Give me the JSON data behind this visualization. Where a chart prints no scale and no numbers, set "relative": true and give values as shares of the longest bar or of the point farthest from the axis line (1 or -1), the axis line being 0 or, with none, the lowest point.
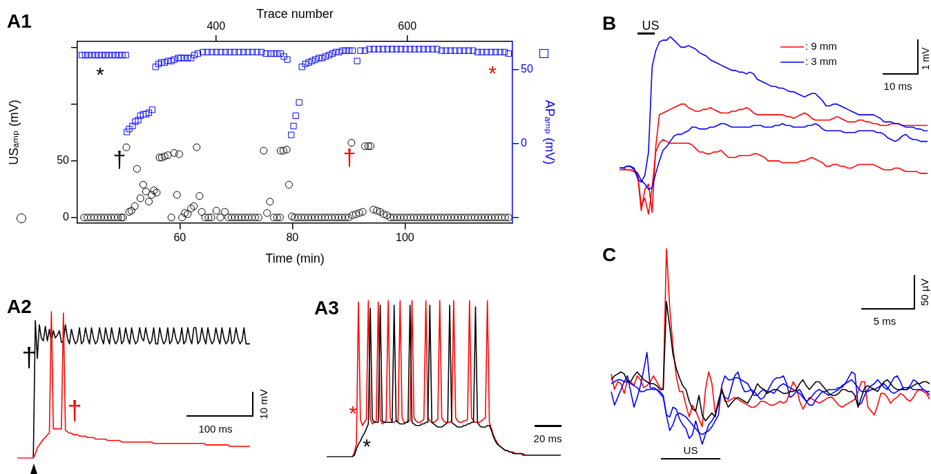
{
  "chart_data": [
    {
      "type": "scatter",
      "title": "A1",
      "xlabel": "Time (min)",
      "ylabel": "USₐₘₚ (mV)",
      "y2label": "APₐₘₚ (mV)",
      "x2label": "Trace number",
      "xlim": [
        41.8,
        119.1
      ],
      "xticks": [
        60,
        80,
        100
      ],
      "x2lim": [
        255,
        710
      ],
      "x2ticks": [
        400,
        600
      ],
      "ylim": [
        -5,
        155.5
      ],
      "yticks": [
        0,
        50,
        {
          "value": 100,
          "label": null
        },
        {
          "value": 150,
          "label": null
        }
      ],
      "y2lim": [
        -53.7,
        69.2
      ],
      "y2ticks": [
        {
          "value": -50,
          "label": null
        },
        0,
        50
      ],
      "series": [
        {
          "color": "#000000",
          "marker": "circle",
          "x": [
            43.0,
            43.6,
            44.2,
            44.8,
            45.4,
            46.0,
            46.6,
            47.2,
            47.8,
            48.4,
            49.0,
            49.6,
            49.9,
            50.5,
            51.0,
            51.4,
            52.0,
            52.4,
            53.0,
            53.5,
            54.0,
            54.5,
            55.0,
            55.4,
            55.9,
            56.4,
            56.8,
            57.3,
            57.9,
            58.5,
            59.0,
            59.5,
            59.9,
            60.4,
            60.9,
            61.4,
            62.0,
            62.5,
            63.0,
            63.5,
            63.9,
            64.5,
            65.1,
            65.6,
            66.5,
            67.2,
            68.0,
            68.6,
            69.2,
            69.8,
            70.4,
            71.0,
            71.6,
            72.2,
            72.8,
            73.4,
            74.0,
            74.9,
            75.5,
            76.0,
            76.7,
            77.3,
            77.8,
            77.9,
            78.4,
            79.0,
            79.4,
            79.9,
            80.4,
            81.0,
            81.6,
            82.2,
            82.8,
            83.4,
            84.0,
            84.6,
            85.2,
            85.8,
            86.4,
            87.0,
            87.6,
            88.2,
            88.8,
            89.4,
            90.0,
            90.5,
            90.7,
            91.3,
            91.9,
            92.5,
            92.9,
            93.5,
            93.9,
            94.4,
            95.0,
            95.6,
            96.2,
            96.8,
            97.4,
            98.0,
            98.6,
            99.2,
            99.8,
            100.4,
            101.0,
            101.6,
            102.2,
            102.8,
            103.4,
            104.0,
            104.6,
            105.2,
            105.8,
            106.4,
            107.0,
            107.6,
            108.2,
            108.8,
            109.4,
            110.0,
            110.6,
            111.2,
            111.8,
            112.4,
            113.0,
            113.6,
            114.2,
            114.8,
            115.4,
            116.0,
            116.6,
            117.2,
            117.8,
            118.4
          ],
          "values": [
            0,
            0,
            0,
            0,
            0,
            0,
            0,
            0,
            0,
            0,
            0,
            0,
            0,
            62,
            5,
            6,
            10,
            43,
            17,
            29,
            23,
            14,
            20,
            24,
            22,
            53,
            53,
            54,
            55,
            0,
            57,
            20,
            56,
            0,
            4,
            3,
            8,
            10,
            62,
            19,
            5,
            0,
            0,
            0,
            6,
            0,
            5,
            0,
            0,
            0,
            0,
            0,
            0,
            0,
            0,
            0,
            0,
            59,
            4,
            14,
            0,
            0,
            0,
            59,
            59,
            60,
            29,
            1,
            0,
            0,
            0,
            0,
            0,
            0,
            0,
            0,
            0,
            0,
            0,
            0,
            0,
            0,
            0,
            0,
            0,
            66,
            2,
            3,
            4,
            5,
            63,
            63,
            63,
            7,
            6,
            5,
            3,
            2,
            0,
            0,
            0,
            0,
            0,
            0,
            0,
            0,
            0,
            0,
            0,
            0,
            0,
            0,
            0,
            0,
            0,
            0,
            0,
            0,
            0,
            0,
            0,
            0,
            0,
            0,
            0,
            0,
            0,
            0,
            0,
            0,
            0,
            0,
            0,
            0
          ]
        },
        {
          "color": "#0000ff",
          "marker": "square",
          "axis": "y2",
          "x": [
            42.6,
            43.2,
            43.8,
            44.4,
            45.0,
            45.6,
            46.2,
            46.8,
            47.4,
            48.0,
            48.6,
            49.2,
            49.8,
            50.4,
            50.6,
            51.0,
            51.6,
            52.1,
            52.6,
            53.0,
            53.5,
            54.0,
            54.5,
            55.1,
            55.7,
            56.2,
            56.7,
            57.3,
            57.9,
            58.5,
            59.0,
            59.7,
            60.2,
            60.8,
            61.4,
            62.0,
            62.6,
            63.2,
            64.1,
            64.9,
            65.7,
            66.5,
            67.3,
            68.1,
            68.9,
            69.7,
            70.5,
            71.3,
            72.1,
            72.9,
            73.7,
            74.5,
            75.3,
            76.1,
            76.7,
            77.3,
            77.9,
            78.5,
            79.1,
            79.8,
            80.2,
            80.6,
            81.2,
            81.7,
            82.3,
            82.9,
            83.5,
            84.1,
            84.7,
            85.3,
            85.9,
            86.5,
            87.1,
            87.7,
            88.3,
            88.9,
            89.5,
            90.1,
            90.7,
            91.5,
            92.1,
            92.9,
            93.7,
            94.5,
            95.3,
            96.1,
            96.9,
            97.7,
            98.5,
            99.3,
            100.1,
            100.9,
            101.7,
            102.5,
            103.3,
            104.1,
            104.9,
            105.7,
            106.5,
            107.3,
            108.1,
            108.9,
            109.7,
            110.5,
            111.3,
            112.1,
            112.9,
            113.7,
            114.5,
            115.3,
            116.1,
            116.9,
            117.7,
            118.4
          ],
          "values": [
            60,
            60,
            60,
            60,
            60,
            60,
            60,
            60,
            60,
            60,
            60,
            60,
            60,
            60,
            8,
            10,
            12,
            15,
            16,
            19,
            20,
            20,
            21,
            23,
            52,
            54,
            55,
            55,
            56,
            56,
            57,
            58,
            58,
            58,
            58,
            58,
            60,
            61,
            62,
            62,
            62,
            62,
            62,
            62,
            62,
            62,
            62,
            62,
            62,
            62,
            62,
            62,
            61,
            61,
            61,
            61,
            61,
            59,
            57,
            6,
            12,
            19,
            28,
            52,
            54,
            55,
            56,
            57,
            58,
            58,
            59,
            60,
            61,
            62,
            62,
            63,
            63,
            63,
            63,
            56,
            63,
            63,
            64,
            64,
            64,
            64,
            64,
            64,
            64,
            64,
            64,
            64,
            64,
            64,
            64,
            64,
            64,
            64,
            63,
            63,
            63,
            63,
            63,
            63,
            63,
            63,
            62,
            62,
            62,
            62,
            62,
            62,
            62,
            61
          ]
        }
      ],
      "annotations": [
        "*",
        "†",
        "†",
        "*"
      ]
    },
    {
      "type": "line",
      "title": "A2",
      "relative": true,
      "categories": [
        null,
        null,
        null,
        null,
        null,
        null,
        null,
        null,
        null,
        null,
        null,
        null,
        null,
        null,
        null,
        null,
        null,
        null,
        null,
        null,
        null,
        null,
        null,
        null,
        null,
        null,
        null,
        null,
        null,
        null,
        null,
        null,
        null,
        null,
        null,
        null,
        null,
        null,
        null,
        null,
        null,
        null,
        null,
        null,
        null,
        null,
        null,
        null,
        null,
        null,
        null,
        null,
        null,
        null,
        null,
        null,
        null,
        null,
        null,
        null,
        null,
        null,
        null,
        null,
        null,
        null,
        null,
        null,
        null,
        null,
        null,
        null,
        null,
        null,
        null,
        null,
        null,
        null,
        null,
        null,
        null,
        null,
        null,
        null,
        null,
        null,
        null,
        null,
        null,
        null,
        null,
        null,
        null,
        null,
        null,
        null,
        null,
        null,
        null,
        null,
        null,
        null,
        null,
        null,
        null,
        null,
        null,
        null,
        null,
        null,
        null,
        null,
        null,
        null,
        null,
        null,
        null
      ],
      "series": [
        {
          "color": "#000000",
          "values": [
            null,
            null,
            null,
            null,
            null,
            null,
            null,
            null,
            0,
            0.94,
            0.68,
            0.91,
            0.82,
            0.8,
            0.9,
            0.8,
            0.88,
            0.79,
            0.87,
            0.82,
            0.84,
            0.87,
            0.79,
            0.8,
            0.91,
            0.82,
            0.78,
            0.88,
            0.82,
            0.78,
            0.8,
            0.89,
            0.78,
            0.8,
            0.89,
            0.82,
            0.78,
            0.89,
            0.82,
            0.78,
            0.8,
            0.89,
            0.82,
            0.78,
            0.89,
            0.82,
            0.78,
            0.89,
            0.82,
            0.78,
            0.8,
            0.89,
            0.78,
            0.8,
            0.89,
            0.82,
            0.78,
            0.89,
            0.82,
            0.78,
            0.8,
            0.89,
            0.82,
            0.8,
            0.89,
            0.82,
            0.78,
            0.8,
            0.89,
            0.78,
            0.78,
            0.89,
            0.82,
            0.78,
            0.8,
            0.89,
            0.78,
            0.8,
            0.89,
            0.82,
            0.78,
            0.8,
            0.89,
            0.78,
            0.8,
            0.89,
            0.82,
            0.78,
            0.89,
            0.89,
            0.78,
            0.8,
            0.89,
            0.82,
            0.78,
            0.89,
            0.82,
            0.78,
            0.8,
            0.89,
            0.82,
            0.78,
            0.89,
            0.82,
            0.78,
            0.8,
            0.89,
            0.78,
            0.8,
            0.89,
            0.82,
            0.78,
            0.8,
            0.89,
            0.78,
            0.78,
            0.78
          ]
        },
        {
          "color": "#ff0000",
          "values": [
            0,
            0,
            0,
            0,
            0,
            0,
            0,
            0,
            0,
            0.03,
            0.07,
            0.09,
            0.11,
            0.13,
            0.14,
            0.16,
            0.17,
            1.0,
            0.2,
            0.2,
            0.2,
            0.2,
            0.2,
            0.99,
            0.19,
            0.18,
            0.17,
            0.17,
            0.16,
            0.16,
            0.16,
            0.15,
            0.15,
            0.15,
            0.15,
            0.14,
            0.14,
            0.14,
            0.14,
            0.13,
            0.13,
            0.13,
            0.13,
            0.13,
            0.13,
            0.12,
            0.12,
            0.12,
            0.12,
            0.12,
            0.12,
            0.12,
            0.11,
            0.11,
            0.11,
            0.11,
            0.11,
            0.11,
            0.11,
            0.11,
            0.11,
            0.11,
            0.11,
            0.11,
            0.11,
            0.11,
            0.11,
            0.11,
            0.1,
            0.1,
            0.1,
            0.1,
            0.1,
            0.1,
            0.1,
            0.1,
            0.1,
            0.1,
            0.1,
            0.1,
            0.1,
            0.1,
            0.1,
            0.1,
            0.1,
            0.1,
            0.1,
            0.1,
            0.1,
            0.1,
            0.1,
            0.1,
            0.1,
            0.1,
            0.09,
            0.09,
            0.09,
            0.09,
            0.09,
            0.09,
            0.09,
            0.09,
            0.09,
            0.09,
            0.09,
            0.09,
            0.08,
            0.08,
            0.08,
            0.08,
            0.08,
            0.08,
            0.08,
            0.08,
            0.08,
            0.08,
            0.08
          ]
        }
      ],
      "annotations": [
        "†",
        "†",
        "10 mV",
        "100 ms"
      ]
    },
    {
      "type": "line",
      "title": "A3",
      "relative": true,
      "categories": [
        null,
        null,
        null,
        null,
        null,
        null,
        null,
        null,
        null,
        null,
        null,
        null,
        null,
        null,
        null,
        null,
        null,
        null,
        null,
        null,
        null,
        null,
        null,
        null,
        null,
        null,
        null,
        null,
        null,
        null,
        null,
        null,
        null,
        null,
        null,
        null,
        null,
        null,
        null,
        null,
        null,
        null,
        null,
        null,
        null,
        null,
        null,
        null,
        null,
        null,
        null,
        null,
        null,
        null,
        null,
        null,
        null,
        null,
        null,
        null,
        null,
        null,
        null,
        null,
        null,
        null,
        null,
        null,
        null,
        null,
        null,
        null,
        null,
        null,
        null,
        null,
        null,
        null,
        null,
        null,
        null,
        null,
        null,
        null,
        null,
        null,
        null,
        null,
        null,
        null,
        null,
        null,
        null,
        null,
        null,
        null,
        null,
        null,
        null,
        null,
        null,
        null,
        null,
        null,
        null,
        null,
        null,
        null,
        null,
        null,
        null,
        null,
        null,
        null,
        null,
        null,
        null,
        null,
        null
      ],
      "series": [
        {
          "color": "#ff0000",
          "values": [
            null,
            null,
            null,
            null,
            null,
            null,
            null,
            null,
            null,
            null,
            null,
            null,
            null,
            0,
            0.03,
            0.08,
            0.99,
            0.24,
            0.2,
            0.22,
            0.24,
            1.0,
            0.24,
            0.21,
            0.22,
            0.23,
            0.99,
            0.24,
            0.21,
            0.22,
            0.23,
            1.0,
            0.25,
            0.22,
            0.22,
            0.23,
            0.23,
            1.0,
            0.25,
            0.22,
            0.22,
            0.23,
            0.23,
            1.0,
            0.25,
            0.23,
            0.22,
            0.22,
            0.23,
            0.24,
            1.0,
            0.25,
            0.23,
            0.22,
            0.22,
            0.23,
            0.24,
            1.0,
            0.25,
            0.23,
            0.22,
            0.22,
            0.22,
            0.23,
            1.0,
            0.25,
            0.23,
            0.22,
            0.22,
            0.23,
            0.23,
            0.24,
            1.0,
            0.25,
            0.23,
            0.22,
            0.22,
            0.22,
            0.23,
            0.24,
            0.25,
            1.0,
            0.22,
            0.18,
            0.14,
            0.11,
            0.09,
            0.07,
            0.06,
            0.05,
            0.04,
            0.04,
            0.03,
            0.03,
            0.03,
            0.02,
            0.02,
            0.02,
            0.02,
            0.02,
            0.01,
            null,
            null,
            null,
            null,
            null,
            null,
            null,
            null,
            null,
            null,
            null,
            null,
            null,
            null,
            null,
            null,
            null,
            null
          ]
        },
        {
          "color": "#000000",
          "values": [
            0,
            0,
            0,
            0,
            0,
            0,
            0,
            0,
            0,
            0,
            0,
            0,
            0,
            0,
            0.01,
            0.05,
            0.08,
            0.1,
            0.13,
            0.15,
            0.18,
            0.21,
            0.95,
            0.24,
            0.22,
            0.22,
            0.22,
            0.97,
            0.23,
            0.22,
            0.22,
            0.22,
            0.22,
            0.22,
            0.97,
            0.23,
            0.22,
            0.21,
            0.21,
            0.21,
            0.22,
            0.22,
            0.97,
            0.22,
            0.21,
            0.2,
            0.2,
            0.2,
            0.21,
            0.21,
            0.22,
            0.22,
            0.97,
            0.22,
            0.21,
            0.2,
            0.19,
            0.19,
            0.19,
            0.2,
            0.21,
            0.22,
            0.97,
            0.22,
            0.21,
            0.2,
            0.19,
            0.19,
            0.19,
            0.2,
            0.2,
            0.21,
            0.21,
            0.22,
            0.22,
            0.96,
            0.22,
            0.2,
            0.19,
            0.19,
            0.19,
            0.2,
            0.2,
            0.17,
            0.13,
            0.1,
            0.08,
            0.07,
            0.06,
            0.05,
            0.04,
            0.04,
            0.03,
            0.03,
            0.02,
            0.02,
            0.02,
            0.02,
            0.02,
            0.01,
            0.01,
            0.01,
            0.01,
            0.01,
            0.01,
            0.01,
            0.01,
            0.01,
            0.01,
            0.01,
            0.01,
            0.01,
            0.01,
            0.01,
            0.01,
            0.01,
            0.01,
            0.01,
            0.01
          ]
        }
      ],
      "annotations": [
        "*",
        "*",
        "20 ms"
      ]
    },
    {
      "type": "line",
      "title": "B",
      "relative": true,
      "legend": "top right",
      "categories": [
        null,
        null,
        null,
        null,
        null,
        null,
        null,
        null,
        null,
        null,
        null,
        null,
        null,
        null,
        null,
        null,
        null,
        null,
        null,
        null,
        null,
        null,
        null,
        null,
        null,
        null,
        null,
        null,
        null,
        null,
        null,
        null,
        null,
        null,
        null,
        null,
        null,
        null,
        null,
        null,
        null,
        null,
        null,
        null,
        null,
        null,
        null,
        null,
        null,
        null,
        null,
        null,
        null,
        null,
        null,
        null,
        null,
        null,
        null,
        null,
        null,
        null,
        null,
        null,
        null,
        null,
        null,
        null,
        null,
        null,
        null,
        null,
        null,
        null,
        null,
        null,
        null,
        null,
        null,
        null,
        null,
        null,
        null,
        null,
        null,
        null
      ],
      "series": [
        {
          "name": ": 9 mm",
          "color": "#ff0000",
          "values": [
            0.25,
            0.25,
            0.25,
            0.25,
            0.24,
            0.22,
            0.02,
            0.14,
            0.17,
            0.01,
            0.38,
            0.56,
            0.57,
            0.58,
            0.59,
            0.6,
            0.61,
            0.62,
            0.62,
            0.6,
            0.59,
            0.58,
            0.58,
            0.59,
            0.59,
            0.6,
            0.59,
            0.58,
            0.57,
            0.57,
            0.57,
            0.58,
            0.58,
            0.59,
            0.59,
            0.6,
            0.59,
            0.57,
            0.56,
            0.56,
            0.56,
            0.56,
            0.56,
            0.56,
            0.56,
            0.56,
            0.55,
            0.55,
            0.54,
            0.55,
            0.56,
            0.57,
            0.56,
            0.54,
            0.53,
            0.53,
            0.53,
            0.53,
            0.53,
            0.54,
            0.55,
            0.54,
            0.53,
            0.52,
            0.52,
            0.52,
            0.53,
            0.53,
            0.52,
            0.52,
            0.51,
            0.51,
            0.5,
            0.5,
            0.5,
            0.51,
            0.51,
            0.51,
            0.5,
            0.5,
            0.5,
            0.5,
            0.5,
            0.5,
            0.5,
            0.5
          ]
        },
        {
          "color": "#ff0000",
          "values": [
            0.26,
            0.26,
            0.25,
            0.25,
            0.24,
            0.23,
            0.05,
            0.09,
            0,
            0.15,
            0.35,
            0.4,
            0.42,
            0.41,
            0.4,
            0.4,
            0.4,
            0.4,
            0.4,
            0.4,
            0.39,
            0.37,
            0.35,
            0.35,
            0.34,
            0.34,
            0.35,
            0.35,
            0.36,
            0.34,
            0.32,
            0.32,
            0.32,
            0.33,
            0.33,
            0.33,
            0.33,
            0.34,
            0.34,
            0.33,
            0.32,
            0.3,
            0.3,
            0.3,
            0.3,
            0.29,
            0.29,
            0.29,
            0.29,
            0.29,
            0.3,
            0.3,
            0.31,
            0.32,
            0.31,
            0.3,
            0.29,
            0.27,
            0.27,
            0.28,
            0.28,
            0.27,
            0.27,
            0.26,
            0.26,
            0.27,
            0.28,
            0.28,
            0.28,
            0.28,
            0.28,
            0.27,
            0.26,
            0.25,
            0.25,
            0.25,
            0.26,
            0.26,
            0.25,
            0.24,
            0.24,
            0.24,
            0.24,
            0.23,
            0.23,
            0.23
          ]
        },
        {
          "name": ": 3 mm",
          "color": "#0000ff",
          "values": [
            0.26,
            0.26,
            0.27,
            0.27,
            0.26,
            0.2,
            0.18,
            0.22,
            0.35,
            0.83,
            0.92,
            0.97,
            0.98,
            0.98,
            1.0,
            0.98,
            0.96,
            0.94,
            0.94,
            0.95,
            0.94,
            0.93,
            0.91,
            0.9,
            0.89,
            0.87,
            0.86,
            0.85,
            0.84,
            0.83,
            0.82,
            0.81,
            0.81,
            0.8,
            0.8,
            0.79,
            0.8,
            0.79,
            0.76,
            0.75,
            0.74,
            0.73,
            0.72,
            0.72,
            0.71,
            0.71,
            0.7,
            0.69,
            0.69,
            0.68,
            0.67,
            0.66,
            0.67,
            0.68,
            0.68,
            0.66,
            0.64,
            0.61,
            0.61,
            0.62,
            0.62,
            0.61,
            0.6,
            0.59,
            0.58,
            0.57,
            0.56,
            0.56,
            0.56,
            0.56,
            0.56,
            0.55,
            0.54,
            0.52,
            0.52,
            0.52,
            0.51,
            0.51,
            0.5,
            0.49,
            0.49,
            0.49,
            0.48,
            0.48,
            0.47,
            0.47
          ]
        },
        {
          "color": "#0000ff",
          "values": [
            0.26,
            0.26,
            0.27,
            0.27,
            0.25,
            0.23,
            0.19,
            0.17,
            0.14,
            0.15,
            0.23,
            0.3,
            0.36,
            0.38,
            0.41,
            0.44,
            0.45,
            0.45,
            0.46,
            0.47,
            0.49,
            0.49,
            0.48,
            0.48,
            0.48,
            0.49,
            0.49,
            0.5,
            0.51,
            0.51,
            0.5,
            0.49,
            0.49,
            0.49,
            0.49,
            0.49,
            0.49,
            0.5,
            0.5,
            0.5,
            0.49,
            0.49,
            0.49,
            0.5,
            0.5,
            0.51,
            0.5,
            0.5,
            0.49,
            0.49,
            0.49,
            0.49,
            0.5,
            0.5,
            0.51,
            0.5,
            0.48,
            0.47,
            0.47,
            0.47,
            0.47,
            0.47,
            0.46,
            0.46,
            0.46,
            0.46,
            0.47,
            0.47,
            0.47,
            0.47,
            0.47,
            0.46,
            0.46,
            0.45,
            0.43,
            0.42,
            0.41,
            0.42,
            0.44,
            0.45,
            0.43,
            0.42,
            0.42,
            0.41,
            0.41,
            0.41
          ]
        }
      ],
      "annotations": [
        "US",
        "10 ms",
        "1 mV"
      ]
    },
    {
      "type": "line",
      "title": "C",
      "relative": true,
      "categories": [
        null,
        null,
        null,
        null,
        null,
        null,
        null,
        null,
        null,
        null,
        null,
        null,
        null,
        null,
        null,
        null,
        null,
        null,
        null,
        null,
        null,
        null,
        null,
        null,
        null,
        null,
        null,
        null,
        null,
        null,
        null,
        null,
        null,
        null,
        null,
        null,
        null,
        null,
        null,
        null,
        null,
        null,
        null,
        null,
        null,
        null,
        null,
        null,
        null,
        null,
        null,
        null,
        null,
        null,
        null,
        null,
        null,
        null,
        null,
        null,
        null,
        null,
        null,
        null,
        null,
        null,
        null,
        null,
        null,
        null,
        null,
        null,
        null,
        null,
        null,
        null,
        null,
        null,
        null,
        null,
        null,
        null,
        null,
        null,
        null,
        null,
        null,
        null,
        null,
        null,
        null,
        null,
        null,
        null,
        null,
        null,
        null,
        null,
        null
      ],
      "series": [
        {
          "color": "#ff0000",
          "values": [
            0.36,
            0.28,
            0.32,
            0.31,
            0.26,
            0.33,
            0.32,
            0.3,
            0.35,
            0.33,
            0.29,
            0.3,
            0.32,
            0.35,
            0.32,
            0.29,
            0.28,
            1.0,
            0.7,
            0.5,
            0.35,
            0.27,
            0.27,
            0.2,
            0.14,
            0.2,
            0.17,
            0.13,
            0.09,
            0.28,
            0.37,
            0.31,
            0.16,
            0.2,
            0.29,
            0.22,
            0.22,
            0.23,
            0.24,
            0.23,
            0.22,
            0.21,
            0.2,
            0.19,
            0.19,
            0.2,
            0.22,
            0.22,
            0.21,
            0.2,
            0.2,
            0.21,
            0.22,
            0.21,
            0.22,
            0.27,
            0.32,
            0.29,
            0.22,
            0.18,
            0.21,
            0.24,
            0.23,
            0.22,
            0.21,
            0.22,
            0.23,
            0.24,
            0.24,
            0.22,
            0.2,
            0.19,
            0.2,
            0.21,
            0.22,
            0.23,
            0.27,
            0.32,
            0.32,
            0.19,
            0.17,
            0.15,
            0.2,
            0.26,
            0.26,
            0.24,
            0.21,
            0.23,
            0.24,
            0.26,
            0.25,
            0.23,
            0.22,
            0.24,
            0.27,
            0.28,
            0.27,
            0.26,
            0.23
          ]
        },
        {
          "color": "#0000ff",
          "values": [
            0.27,
            0.2,
            0.24,
            0.28,
            0.32,
            0.35,
            0.27,
            0.19,
            0.24,
            0.3,
            0.38,
            0.47,
            0.29,
            0.28,
            0.28,
            0.27,
            0.25,
            0.15,
            0.14,
            0.19,
            0.18,
            0.13,
            0.1,
            0.08,
            0.03,
            0.05,
            0.12,
            0.06,
            0,
            0.05,
            0.1,
            0.12,
            0.15,
            0.22,
            0.27,
            0.24,
            0.23,
            0.29,
            0.35,
            0.37,
            0.31,
            0.27,
            0.27,
            0.28,
            0.27,
            0.25,
            0.23,
            0.24,
            0.27,
            0.3,
            0.33,
            0.34,
            0.34,
            0.35,
            0.31,
            0.24,
            0.25,
            0.27,
            0.28,
            0.25,
            0.22,
            0.2,
            0.2,
            0.23,
            0.25,
            0.27,
            0.27,
            0.28,
            0.28,
            0.28,
            0.29,
            0.29,
            0.31,
            0.34,
            0.37,
            0.36,
            0.2,
            0.21,
            0.25,
            0.28,
            0.3,
            0.31,
            0.33,
            0.31,
            0.29,
            0.28,
            0.31,
            0.34,
            0.35,
            0.32,
            0.28,
            0.28,
            0.3,
            0.33,
            0.32,
            0.3,
            0.28,
            0.27,
            0.25
          ]
        },
        {
          "color": "#0000ff",
          "values": [
            0.31,
            0.32,
            0.33,
            0.33,
            0.32,
            0.32,
            0.31,
            0.3,
            0.29,
            0.27,
            0.27,
            0.28,
            0.28,
            0.29,
            0.28,
            0.26,
            0.24,
            0.15,
            0.07,
            0.1,
            0.15,
            0.16,
            0.15,
            0.14,
            0.12,
            0.1,
            0.08,
            0.06,
            0.05,
            0.06,
            0.07,
            0.09,
            0.12,
            0.15,
            0.3,
            0.35,
            0.33,
            0.33,
            0.34,
            0.34,
            0.33,
            0.32,
            0.31,
            0.28,
            0.25,
            0.25,
            0.27,
            0.28,
            0.27,
            0.27,
            0.26,
            0.28,
            0.3,
            0.31,
            0.3,
            0.29,
            0.28,
            0.27,
            0.26,
            0.24,
            0.22,
            0.23,
            0.25,
            0.27,
            0.28,
            0.27,
            0.26,
            0.25,
            0.26,
            0.27,
            0.28,
            0.3,
            0.31,
            0.32,
            0.33,
            0.31,
            0.29,
            0.27,
            0.27,
            0.27,
            0.28,
            0.28,
            0.29,
            0.3,
            0.31,
            0.29,
            0.27,
            0.26,
            0.27,
            0.28,
            0.29,
            0.29,
            0.29,
            0.28,
            0.28,
            0.28,
            0.28,
            0.27,
            0.27
          ]
        },
        {
          "color": "#000000",
          "values": [
            0.33,
            0.35,
            0.36,
            0.37,
            0.36,
            0.32,
            0.32,
            0.35,
            0.37,
            0.35,
            0.33,
            0.32,
            0.31,
            0.31,
            0.3,
            0.28,
            0.28,
            0.73,
            0.6,
            0.46,
            0.39,
            0.34,
            0.3,
            0.28,
            0.22,
            0.18,
            0.17,
            0.25,
            0.15,
            0.12,
            0.14,
            0.16,
            0.14,
            0.22,
            0.28,
            0.23,
            0.19,
            0.21,
            0.23,
            0.24,
            0.23,
            0.22,
            0.21,
            0.24,
            0.27,
            0.31,
            0.29,
            0.28,
            0.26,
            0.27,
            0.28,
            0.28,
            0.27,
            0.26,
            0.26,
            0.27,
            0.27,
            0.28,
            0.31,
            0.33,
            0.3,
            0.28,
            0.3,
            0.32,
            0.32,
            0.3,
            0.28,
            0.26,
            0.25,
            0.25,
            0.26,
            0.28,
            0.28,
            0.27,
            0.27,
            0.25,
            0.19,
            0.24,
            0.29,
            0.3,
            0.29,
            0.28,
            0.27,
            0.3,
            0.32,
            0.33,
            0.31,
            0.29,
            0.28,
            0.28,
            0.28,
            0.28,
            0.29,
            0.3,
            0.31,
            0.31,
            0.32,
            0.32,
            0.31
          ]
        }
      ],
      "annotations": [
        "50 µV",
        "5 ms",
        "US"
      ]
    }
  ]
}
